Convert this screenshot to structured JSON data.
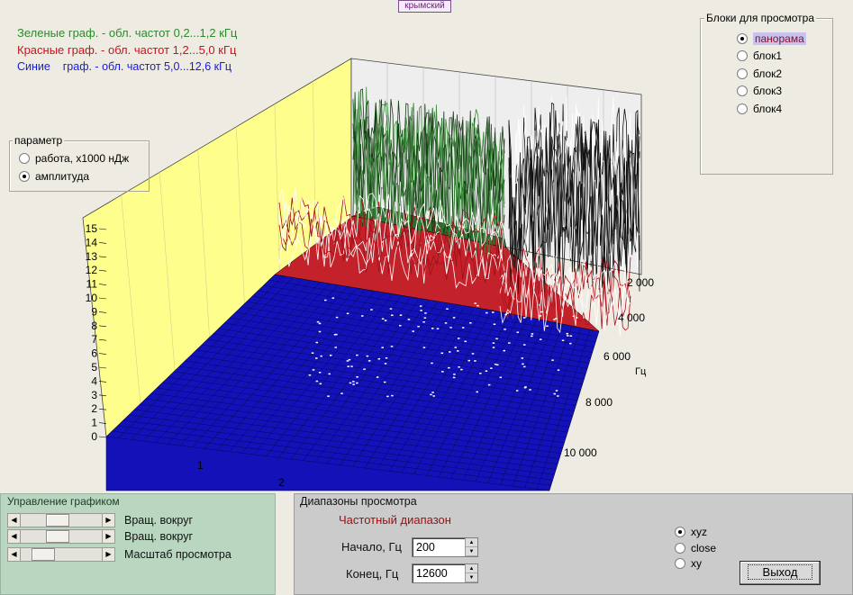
{
  "title_tag": "крымский",
  "legend": {
    "green": "Зеленые граф. - обл. частот 0,2...1,2 кГц",
    "red": "Красные граф. - обл. частот 1,2...5,0 кГц",
    "blue": "Синие    граф. - обл. частот 5,0...12,6 кГц"
  },
  "colors": {
    "green_series": "#2e6b2e",
    "red_series": "#c4222a",
    "blue_series": "#1212b8",
    "back_wall": "#fefe8c",
    "grid_wall": "#eeeeee"
  },
  "blocks_group": {
    "title": "Блоки для просмотра",
    "options": [
      "панорама",
      "блок1",
      "блок2",
      "блок3",
      "блок4"
    ],
    "selected": "панорама"
  },
  "param_group": {
    "title": "параметр",
    "options": [
      "работа, x1000 нДж",
      "амплитуда"
    ],
    "selected": "амплитуда"
  },
  "chart_data": {
    "type": "surface-3d",
    "z_ticks": [
      "0",
      "1",
      "2",
      "3",
      "4",
      "5",
      "6",
      "7",
      "8",
      "9",
      "10",
      "11",
      "12",
      "13",
      "14",
      "15"
    ],
    "z_range": [
      0,
      15
    ],
    "x_ticks": [
      "1",
      "2"
    ],
    "y_ticks": [
      "2 000",
      "4 000",
      "6 000",
      "8 000",
      "10 000"
    ],
    "y_unit": "Гц",
    "series": [
      {
        "name": "Зеленые",
        "band_hz": [
          200,
          1200
        ],
        "color": "#2e6b2e"
      },
      {
        "name": "Красные",
        "band_hz": [
          1200,
          5000
        ],
        "color": "#c4222a"
      },
      {
        "name": "Синие",
        "band_hz": [
          5000,
          12600
        ],
        "color": "#1212b8"
      }
    ]
  },
  "control_panel": {
    "title": "Управление графиком",
    "sliders": [
      {
        "label": "Вращ. вокруг",
        "position": 0.36
      },
      {
        "label": "Вращ. вокруг",
        "position": 0.36
      },
      {
        "label": "Масштаб просмотра",
        "position": 0.22
      }
    ]
  },
  "range_panel": {
    "title": "Диапазоны просмотра",
    "freq_title": "Частотный диапазон",
    "start_label": "Начало, Гц",
    "start_value": "200",
    "end_label": "Конец, Гц",
    "end_value": "12600",
    "view_options": [
      "xyz",
      "close",
      "xy"
    ],
    "view_selected": "xyz",
    "exit_label": "Выход"
  }
}
